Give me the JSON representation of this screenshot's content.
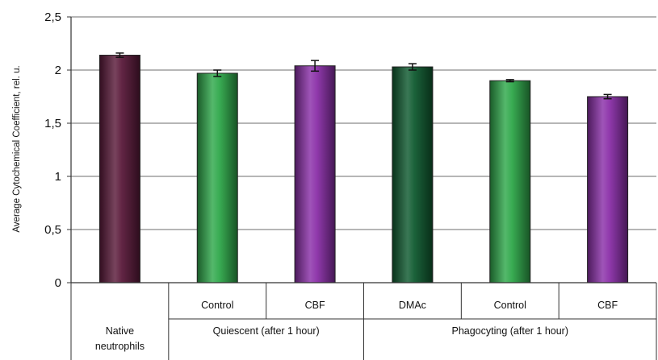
{
  "chart_data": {
    "type": "bar",
    "ylabel": "Average Cytochemical Coefficient, rel. u.",
    "ylim": [
      0,
      2.5
    ],
    "yticks": [
      "0",
      "0,5",
      "1",
      "1,5",
      "2",
      "2,5"
    ],
    "grid": true,
    "legend": "none",
    "bars": [
      {
        "value": 2.14,
        "error": 0.02,
        "color": "#5a1a3a"
      },
      {
        "value": 1.97,
        "error": 0.03,
        "color": "#2fa84a"
      },
      {
        "value": 2.04,
        "error": 0.05,
        "color": "#8a2fa8"
      },
      {
        "value": 2.03,
        "error": 0.03,
        "color": "#0f5a30"
      },
      {
        "value": 1.9,
        "error": 0.01,
        "color": "#2fa84a"
      },
      {
        "value": 1.75,
        "error": 0.02,
        "color": "#8a2fa8"
      }
    ],
    "category_rows": {
      "sub": [
        "",
        "Control",
        "CBF",
        "DMAc",
        "Control",
        "CBF"
      ],
      "groups": [
        {
          "label": [
            "Native",
            "neutrophils"
          ],
          "span": 1
        },
        {
          "label": [
            "Quiescent (after 1 hour)"
          ],
          "span": 2
        },
        {
          "label": [
            "Phagocyting (after 1 hour)"
          ],
          "span": 3
        }
      ]
    }
  }
}
